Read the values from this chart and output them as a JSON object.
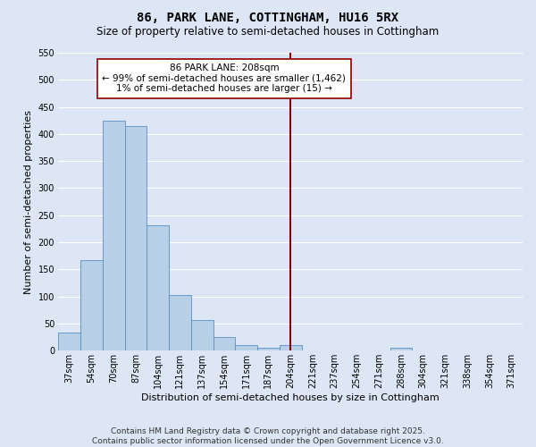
{
  "title": "86, PARK LANE, COTTINGHAM, HU16 5RX",
  "subtitle": "Size of property relative to semi-detached houses in Cottingham",
  "xlabel": "Distribution of semi-detached houses by size in Cottingham",
  "ylabel": "Number of semi-detached properties",
  "bin_labels": [
    "37sqm",
    "54sqm",
    "70sqm",
    "87sqm",
    "104sqm",
    "121sqm",
    "137sqm",
    "154sqm",
    "171sqm",
    "187sqm",
    "204sqm",
    "221sqm",
    "237sqm",
    "254sqm",
    "271sqm",
    "288sqm",
    "304sqm",
    "321sqm",
    "338sqm",
    "354sqm",
    "371sqm"
  ],
  "bar_heights": [
    33,
    167,
    425,
    415,
    231,
    103,
    57,
    25,
    10,
    5,
    10,
    0,
    0,
    0,
    0,
    5,
    0,
    0,
    0,
    0,
    0
  ],
  "bar_color": "#b8cfe8",
  "bar_edge_color": "#5b8ec4",
  "background_color": "#dce6f5",
  "grid_color": "#ffffff",
  "ylim": [
    0,
    550
  ],
  "yticks": [
    0,
    50,
    100,
    150,
    200,
    250,
    300,
    350,
    400,
    450,
    500,
    550
  ],
  "vline_x_index": 10.5,
  "vline_color": "#8b0000",
  "annotation_line1": "86 PARK LANE: 208sqm",
  "annotation_line2": "← 99% of semi-detached houses are smaller (1,462)",
  "annotation_line3": "1% of semi-detached houses are larger (15) →",
  "annotation_box_color": "#ffffff",
  "annotation_box_edge": "#8b0000",
  "footer_text": "Contains HM Land Registry data © Crown copyright and database right 2025.\nContains public sector information licensed under the Open Government Licence v3.0.",
  "title_fontsize": 10,
  "subtitle_fontsize": 8.5,
  "axis_label_fontsize": 8,
  "tick_fontsize": 7,
  "annotation_fontsize": 7.5,
  "footer_fontsize": 6.5
}
